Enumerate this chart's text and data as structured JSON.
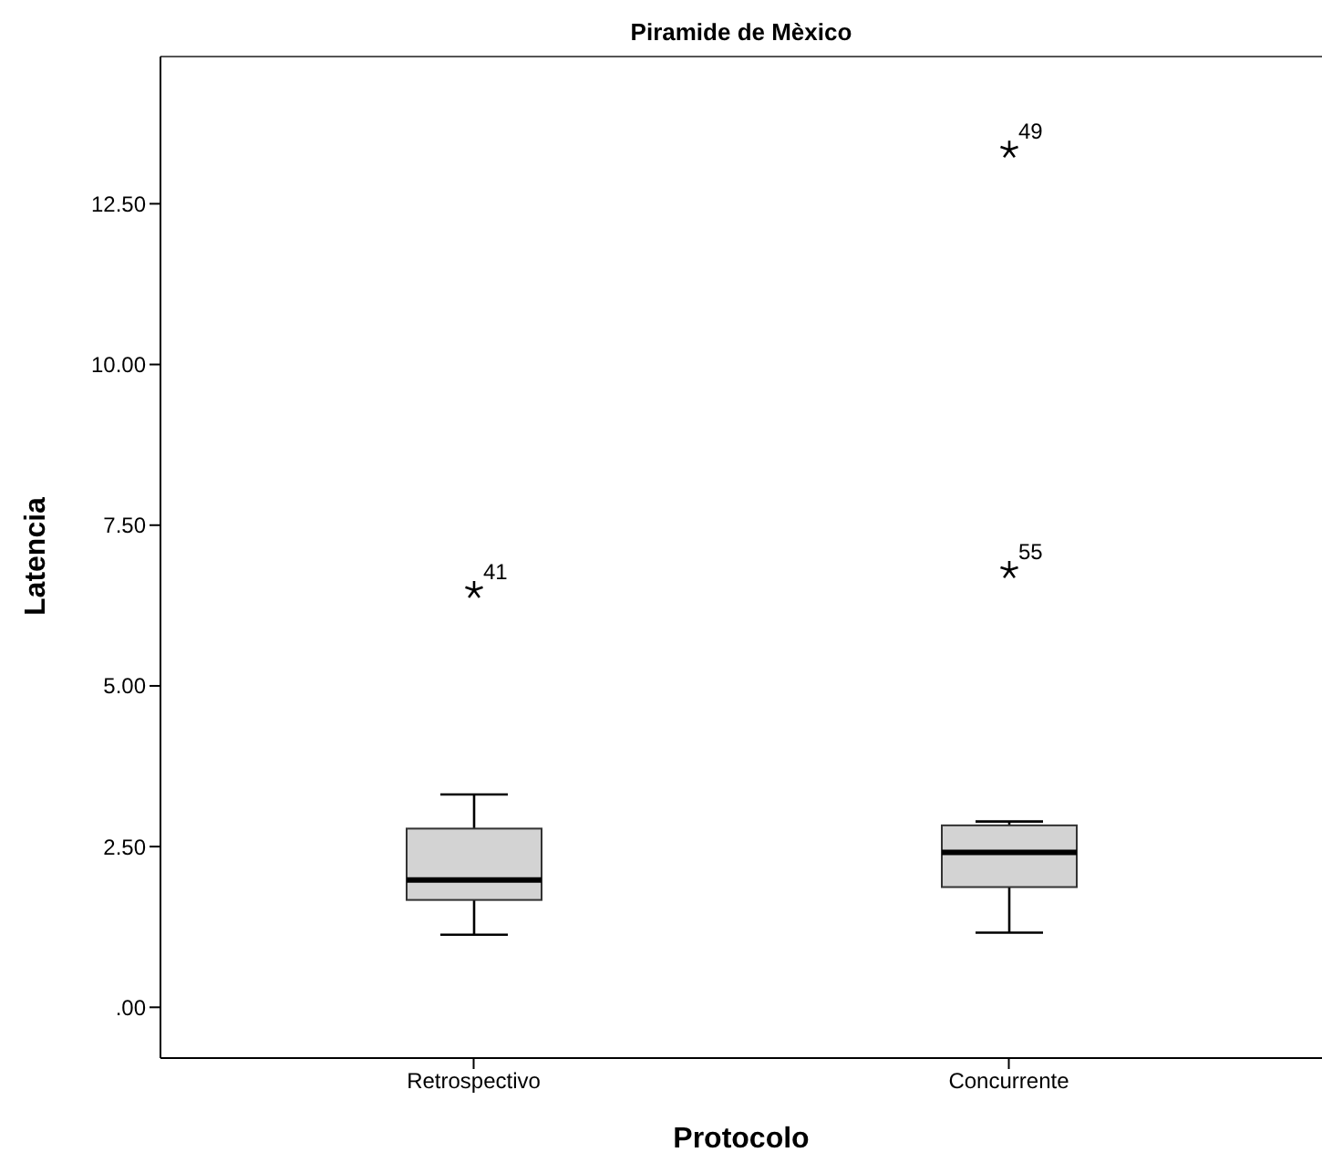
{
  "chart_data": {
    "type": "box",
    "title": "Piramide de Mèxico",
    "xlabel": "Protocolo",
    "ylabel": "Latencia",
    "categories": [
      "Retrospectivo",
      "Concurrente"
    ],
    "series": [
      {
        "color": "#d3d3d3",
        "boxes": [
          {
            "low": 1.13,
            "q1": 1.67,
            "median": 1.98,
            "q3": 2.78,
            "high": 3.31,
            "outliers": [
              6.49
            ]
          },
          {
            "low": 1.16,
            "q1": 1.87,
            "median": 2.41,
            "q3": 2.83,
            "high": 2.89,
            "outliers": [
              6.8,
              13.34
            ]
          }
        ]
      }
    ],
    "ylim": [
      -0.79,
      14.79
    ],
    "yticks": [
      {
        "value": 0,
        "label": ".00"
      },
      {
        "value": 2.5,
        "label": "2.50"
      },
      {
        "value": 5,
        "label": "5.00"
      },
      {
        "value": 7.5,
        "label": "7.50"
      },
      {
        "value": 10,
        "label": "10.00"
      },
      {
        "value": 12.5,
        "label": "12.50"
      }
    ],
    "marker": "star",
    "grid": false,
    "annotations": [
      "41",
      "55",
      "49"
    ]
  }
}
